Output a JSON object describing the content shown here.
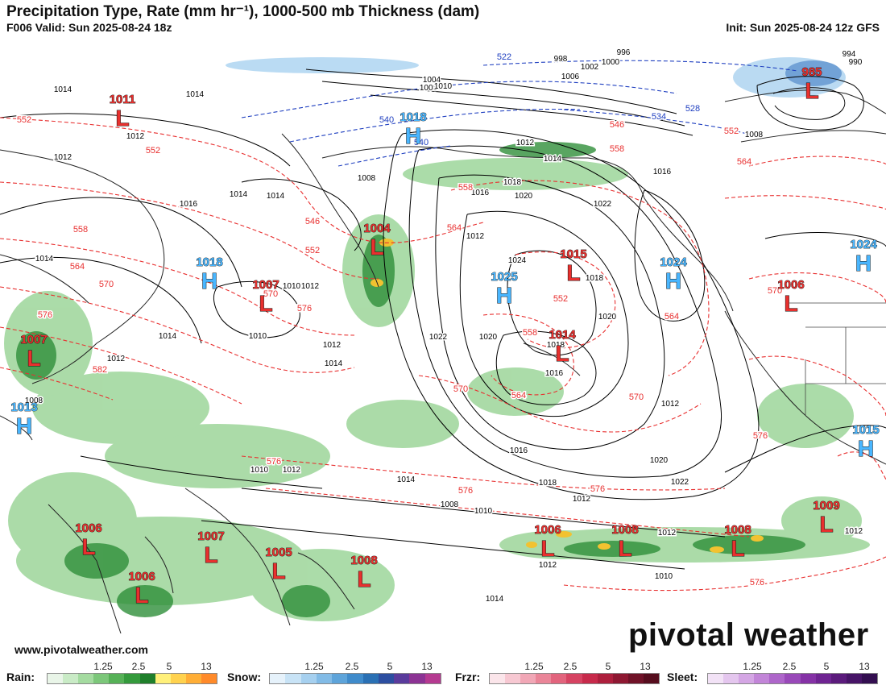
{
  "header": {
    "title": "Precipitation Type, Rate (mm hr⁻¹), 1000-500 mb Thickness (dam)",
    "valid": "F006 Valid: Sun 2025-08-24 18z",
    "init": "Init: Sun 2025-08-24 12z GFS"
  },
  "branding": {
    "logo_text": "pivotal weather",
    "website": "www.pivotalweather.com"
  },
  "colors": {
    "thickness_contour": "#e83030",
    "cold_thickness_contour": "#2040c0",
    "pressure_contour": "#000000",
    "high_label": "#49b6ff",
    "low_label": "#e8302e"
  },
  "pressure_centers": [
    {
      "type": "L",
      "value": "1011"
    },
    {
      "type": "H",
      "value": "1018"
    },
    {
      "type": "L",
      "value": "985"
    },
    {
      "type": "L",
      "value": "1004"
    },
    {
      "type": "H",
      "value": "1018"
    },
    {
      "type": "L",
      "value": "1007"
    },
    {
      "type": "H",
      "value": "1025"
    },
    {
      "type": "L",
      "value": "1015"
    },
    {
      "type": "H",
      "value": "1024"
    },
    {
      "type": "H",
      "value": "1024"
    },
    {
      "type": "L",
      "value": "1006"
    },
    {
      "type": "L",
      "value": "1007"
    },
    {
      "type": "L",
      "value": "1014"
    },
    {
      "type": "H",
      "value": "1013"
    },
    {
      "type": "H",
      "value": "1015"
    },
    {
      "type": "L",
      "value": "1006"
    },
    {
      "type": "L",
      "value": "1007"
    },
    {
      "type": "L",
      "value": "1005"
    },
    {
      "type": "L",
      "value": "1008"
    },
    {
      "type": "L",
      "value": "1006"
    },
    {
      "type": "L",
      "value": "1006"
    },
    {
      "type": "L",
      "value": "1008"
    },
    {
      "type": "L",
      "value": "1008"
    },
    {
      "type": "L",
      "value": "1009"
    }
  ],
  "isobar_labels": [
    "1014",
    "1012",
    "1014",
    "1012",
    "1014",
    "1014",
    "1016",
    "1014",
    "1012",
    "1010",
    "1008",
    "1004",
    "1008",
    "1010",
    "1006",
    "1002",
    "1000",
    "998",
    "996",
    "994",
    "990",
    "1012",
    "1014",
    "1016",
    "1012",
    "1018",
    "1020",
    "1022",
    "1024",
    "1018",
    "1020",
    "1022",
    "1020",
    "1018",
    "1016",
    "1014",
    "1012",
    "1010",
    "1008",
    "1010",
    "1012",
    "1014",
    "1016",
    "1018",
    "1020",
    "1022",
    "1012",
    "1010",
    "1008",
    "1012",
    "1014",
    "1012",
    "1010",
    "1012",
    "1016",
    "1014",
    "1012",
    "1008",
    "1012"
  ],
  "thickness_labels": [
    "552",
    "552",
    "558",
    "564",
    "570",
    "576",
    "582",
    "546",
    "552",
    "558",
    "564",
    "570",
    "576",
    "540",
    "540",
    "534",
    "528",
    "522",
    "546",
    "552",
    "558",
    "564",
    "570",
    "576",
    "576",
    "576",
    "564",
    "570",
    "576",
    "552",
    "558",
    "564",
    "570",
    "576"
  ],
  "legend": {
    "ticks": [
      "1.25",
      "2.5",
      "5",
      "13"
    ],
    "rain": {
      "label": "Rain:",
      "colors": [
        "#e9f5e8",
        "#c9ebc6",
        "#a4dba0",
        "#7cc77a",
        "#56b157",
        "#349a3c",
        "#1f7f2b",
        "#fff07a",
        "#ffd24e",
        "#ffae36",
        "#ff8a2a"
      ]
    },
    "snow": {
      "label": "Snow:",
      "colors": [
        "#e6f2fb",
        "#c8e3f6",
        "#a6d0ef",
        "#82bbe6",
        "#5ea4da",
        "#3f8bcb",
        "#2a70b4",
        "#2c4ea0",
        "#5a3b9c",
        "#8c3394",
        "#b53a91"
      ]
    },
    "frzr": {
      "label": "Frzr:",
      "colors": [
        "#fbe5ea",
        "#f7c8d2",
        "#f1a7b6",
        "#ea8598",
        "#e2647d",
        "#d64362",
        "#c72a4b",
        "#ad1f3d",
        "#8e1832",
        "#701228",
        "#560d1e"
      ]
    },
    "sleet": {
      "label": "Sleet:",
      "colors": [
        "#f2e2f6",
        "#e4c6ee",
        "#d4a6e4",
        "#c285d8",
        "#ae66ca",
        "#9949b9",
        "#8532a6",
        "#6f2492",
        "#5b1b7c",
        "#471467",
        "#330e50"
      ]
    }
  }
}
